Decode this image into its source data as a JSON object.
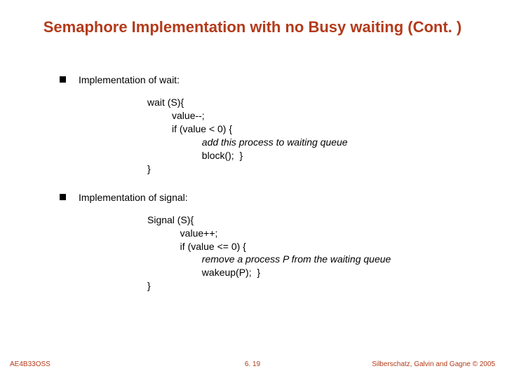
{
  "title": "Semaphore Implementation with no Busy waiting (Cont. )",
  "bullets": {
    "b1": "Implementation of wait:",
    "b2": "Implementation of signal:"
  },
  "code1": {
    "l1": "wait (S){",
    "l2": "         value--;",
    "l3": "         if (value < 0) {",
    "l4a": "                    ",
    "l4b": "add this process to waiting queue",
    "l5": "                    block();  }",
    "l6": "}"
  },
  "code2": {
    "l1": "Signal (S){",
    "l2": "            value++;",
    "l3": "            if (value <= 0) {",
    "l4a": "                    ",
    "l4b": "remove a process P from the waiting queue",
    "l5": "                    wakeup(P);  }",
    "l6": "}"
  },
  "footer": {
    "left": "AE4B33OSS",
    "center": "6. 19",
    "right": "Silberschatz, Galvin and Gagne © 2005"
  },
  "colors": {
    "accent": "#b33a1a",
    "text": "#000000",
    "background": "#ffffff"
  }
}
